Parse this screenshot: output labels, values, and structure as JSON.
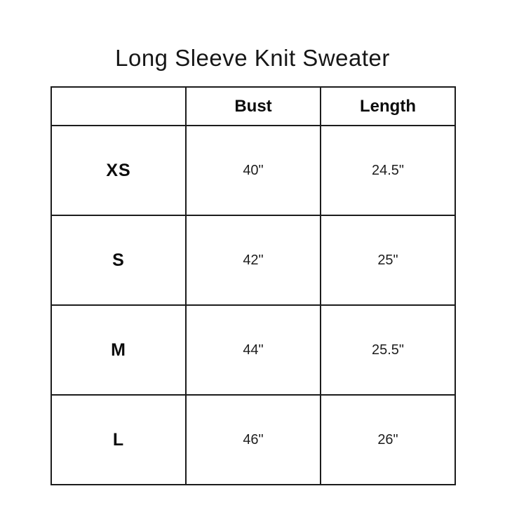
{
  "page": {
    "title": "Long Sleeve Knit Sweater"
  },
  "chart_data": {
    "type": "table",
    "title": "Long Sleeve Knit Sweater",
    "columns": [
      "",
      "Bust",
      "Length"
    ],
    "rows": [
      {
        "size": "XS",
        "bust": "40\"",
        "length": "24.5\""
      },
      {
        "size": "S",
        "bust": "42\"",
        "length": "25\""
      },
      {
        "size": "M",
        "bust": "44\"",
        "length": "25.5\""
      },
      {
        "size": "L",
        "bust": "46\"",
        "length": "26\""
      }
    ],
    "layout": {
      "grid": "on",
      "border_color": "#1c1c1c",
      "background": "#ffffff",
      "text_color": "#111111"
    }
  }
}
